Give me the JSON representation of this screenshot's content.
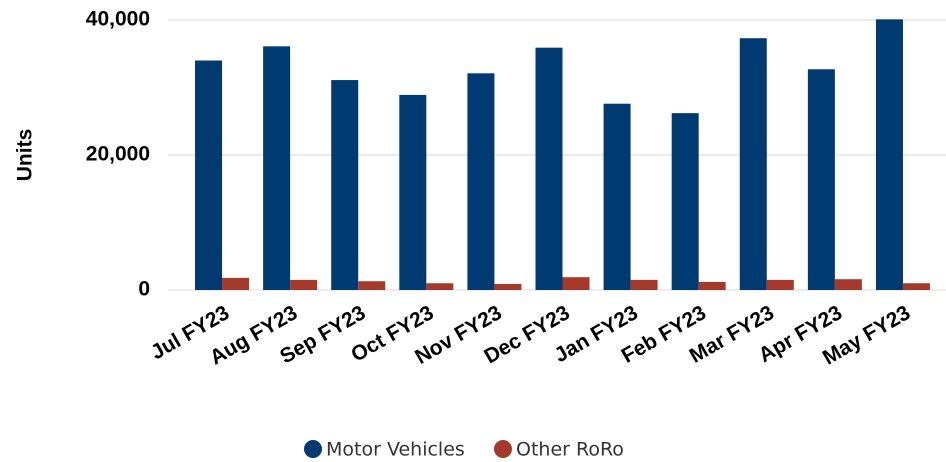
{
  "chart_data": {
    "type": "bar",
    "y_label": "Units",
    "categories": [
      "Jul FY23",
      "Aug FY23",
      "Sep FY23",
      "Oct FY23",
      "Nov FY23",
      "Dec FY23",
      "Jan FY23",
      "Feb FY23",
      "Mar FY23",
      "Apr FY23",
      "May FY23"
    ],
    "series": [
      {
        "name": "Motor Vehicles",
        "color": "#003a70",
        "values": [
          34000,
          36100,
          31100,
          28900,
          32100,
          35900,
          27600,
          26200,
          37300,
          32700,
          40100
        ]
      },
      {
        "name": "Other RoRo",
        "color": "#a33a2c",
        "values": [
          1800,
          1500,
          1300,
          1000,
          900,
          1900,
          1500,
          1200,
          1500,
          1600,
          1000
        ]
      }
    ],
    "ylim": [
      0,
      40000
    ],
    "yticks": [
      0,
      {
        "value": 20000,
        "label": "20,000"
      },
      {
        "value": 40000,
        "label": "40,000"
      }
    ],
    "grid": true,
    "legend": "bottom"
  }
}
